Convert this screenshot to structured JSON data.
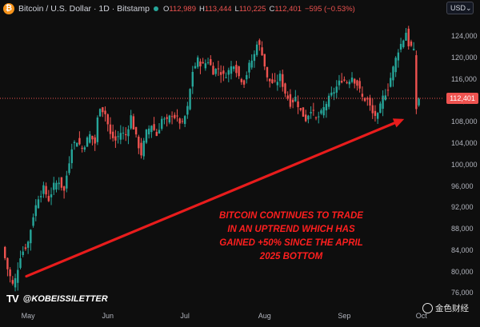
{
  "header": {
    "symbol_title": "Bitcoin / U.S. Dollar · 1D · Bitstamp",
    "logo_letter": "₿",
    "ohlc": {
      "open_label": "O",
      "open": "112,989",
      "high_label": "H",
      "high": "113,444",
      "low_label": "L",
      "low": "110,225",
      "close_label": "C",
      "close": "112,401",
      "change": "−595 (−0.53%)"
    },
    "currency": "USD",
    "currency_caret": "⌄"
  },
  "annotation_lines": [
    "BITCOIN CONTINUES TO TRADE",
    "IN AN UPTREND WHICH HAS",
    "GAINED +50% SINCE THE APRIL",
    "2025 BOTTOM"
  ],
  "brand": {
    "logo": "TV",
    "handle": "@KOBEISSILETTER"
  },
  "watermark": "金色财经",
  "colors": {
    "background": "#0e0e0e",
    "up": "#26a69a",
    "down": "#ef5350",
    "arrow": "#e81c1c",
    "annotation": "#ff1f1f",
    "price_line": "#ef5350"
  },
  "chart_data": {
    "type": "candlestick",
    "title": "Bitcoin / U.S. Dollar · 1D · Bitstamp",
    "ylim": [
      73500,
      127500
    ],
    "y_ticks": [
      76000,
      80000,
      84000,
      88000,
      92000,
      96000,
      100000,
      104000,
      108000,
      112000,
      116000,
      120000,
      124000
    ],
    "y_tick_labels": [
      "76,000",
      "80,000",
      "84,000",
      "88,000",
      "92,000",
      "96,000",
      "100,000",
      "104,000",
      "108,000",
      "112,000",
      "116,000",
      "120,000",
      "124,000"
    ],
    "x_ticks": [
      "May",
      "Jun",
      "Jul",
      "Aug",
      "Sep",
      "Oct"
    ],
    "x_tick_positions": [
      10,
      41,
      71,
      102,
      133,
      163
    ],
    "last_price": 112401,
    "last_price_label": "112,401",
    "close_path": [
      [
        0,
        84500
      ],
      [
        2,
        80500
      ],
      [
        4,
        77500
      ],
      [
        5,
        78500
      ],
      [
        7,
        83000
      ],
      [
        10,
        85500
      ],
      [
        12,
        90500
      ],
      [
        14,
        94000
      ],
      [
        16,
        95500
      ],
      [
        18,
        93500
      ],
      [
        20,
        96000
      ],
      [
        22,
        97000
      ],
      [
        24,
        95000
      ],
      [
        25,
        98000
      ],
      [
        27,
        103500
      ],
      [
        29,
        104500
      ],
      [
        31,
        103000
      ],
      [
        34,
        105500
      ],
      [
        36,
        104000
      ],
      [
        37,
        108500
      ],
      [
        38,
        111000
      ],
      [
        40,
        109500
      ],
      [
        42,
        105500
      ],
      [
        44,
        104500
      ],
      [
        46,
        106000
      ],
      [
        48,
        105500
      ],
      [
        50,
        109000
      ],
      [
        52,
        105000
      ],
      [
        53,
        103500
      ],
      [
        54,
        102000
      ],
      [
        56,
        106000
      ],
      [
        58,
        107500
      ],
      [
        60,
        105500
      ],
      [
        62,
        108500
      ],
      [
        64,
        108000
      ],
      [
        66,
        109500
      ],
      [
        68,
        108500
      ],
      [
        70,
        107500
      ],
      [
        72,
        110500
      ],
      [
        74,
        117500
      ],
      [
        76,
        119500
      ],
      [
        78,
        118500
      ],
      [
        80,
        119500
      ],
      [
        82,
        117500
      ],
      [
        84,
        118000
      ],
      [
        86,
        116500
      ],
      [
        88,
        117500
      ],
      [
        90,
        119000
      ],
      [
        92,
        116500
      ],
      [
        94,
        115500
      ],
      [
        96,
        118500
      ],
      [
        98,
        120500
      ],
      [
        99,
        123000
      ],
      [
        101,
        121000
      ],
      [
        103,
        116000
      ],
      [
        106,
        115000
      ],
      [
        108,
        116500
      ],
      [
        110,
        113500
      ],
      [
        112,
        111500
      ],
      [
        114,
        112500
      ],
      [
        116,
        110000
      ],
      [
        118,
        108500
      ],
      [
        120,
        110500
      ],
      [
        122,
        108500
      ],
      [
        124,
        109500
      ],
      [
        126,
        111500
      ],
      [
        128,
        113000
      ],
      [
        130,
        114500
      ],
      [
        132,
        116000
      ],
      [
        134,
        115500
      ],
      [
        136,
        116500
      ],
      [
        138,
        115000
      ],
      [
        140,
        112500
      ],
      [
        142,
        112000
      ],
      [
        144,
        109500
      ],
      [
        146,
        109000
      ],
      [
        148,
        112500
      ],
      [
        150,
        114500
      ],
      [
        152,
        118000
      ],
      [
        154,
        121500
      ],
      [
        156,
        123500
      ],
      [
        157,
        124800
      ],
      [
        158,
        122500
      ],
      [
        159,
        122000
      ],
      [
        160,
        121000
      ],
      [
        161,
        110500
      ],
      [
        162,
        112401
      ]
    ],
    "arrow": {
      "from": [
        0,
        78500
      ],
      "to": [
        157,
        108300
      ]
    }
  }
}
